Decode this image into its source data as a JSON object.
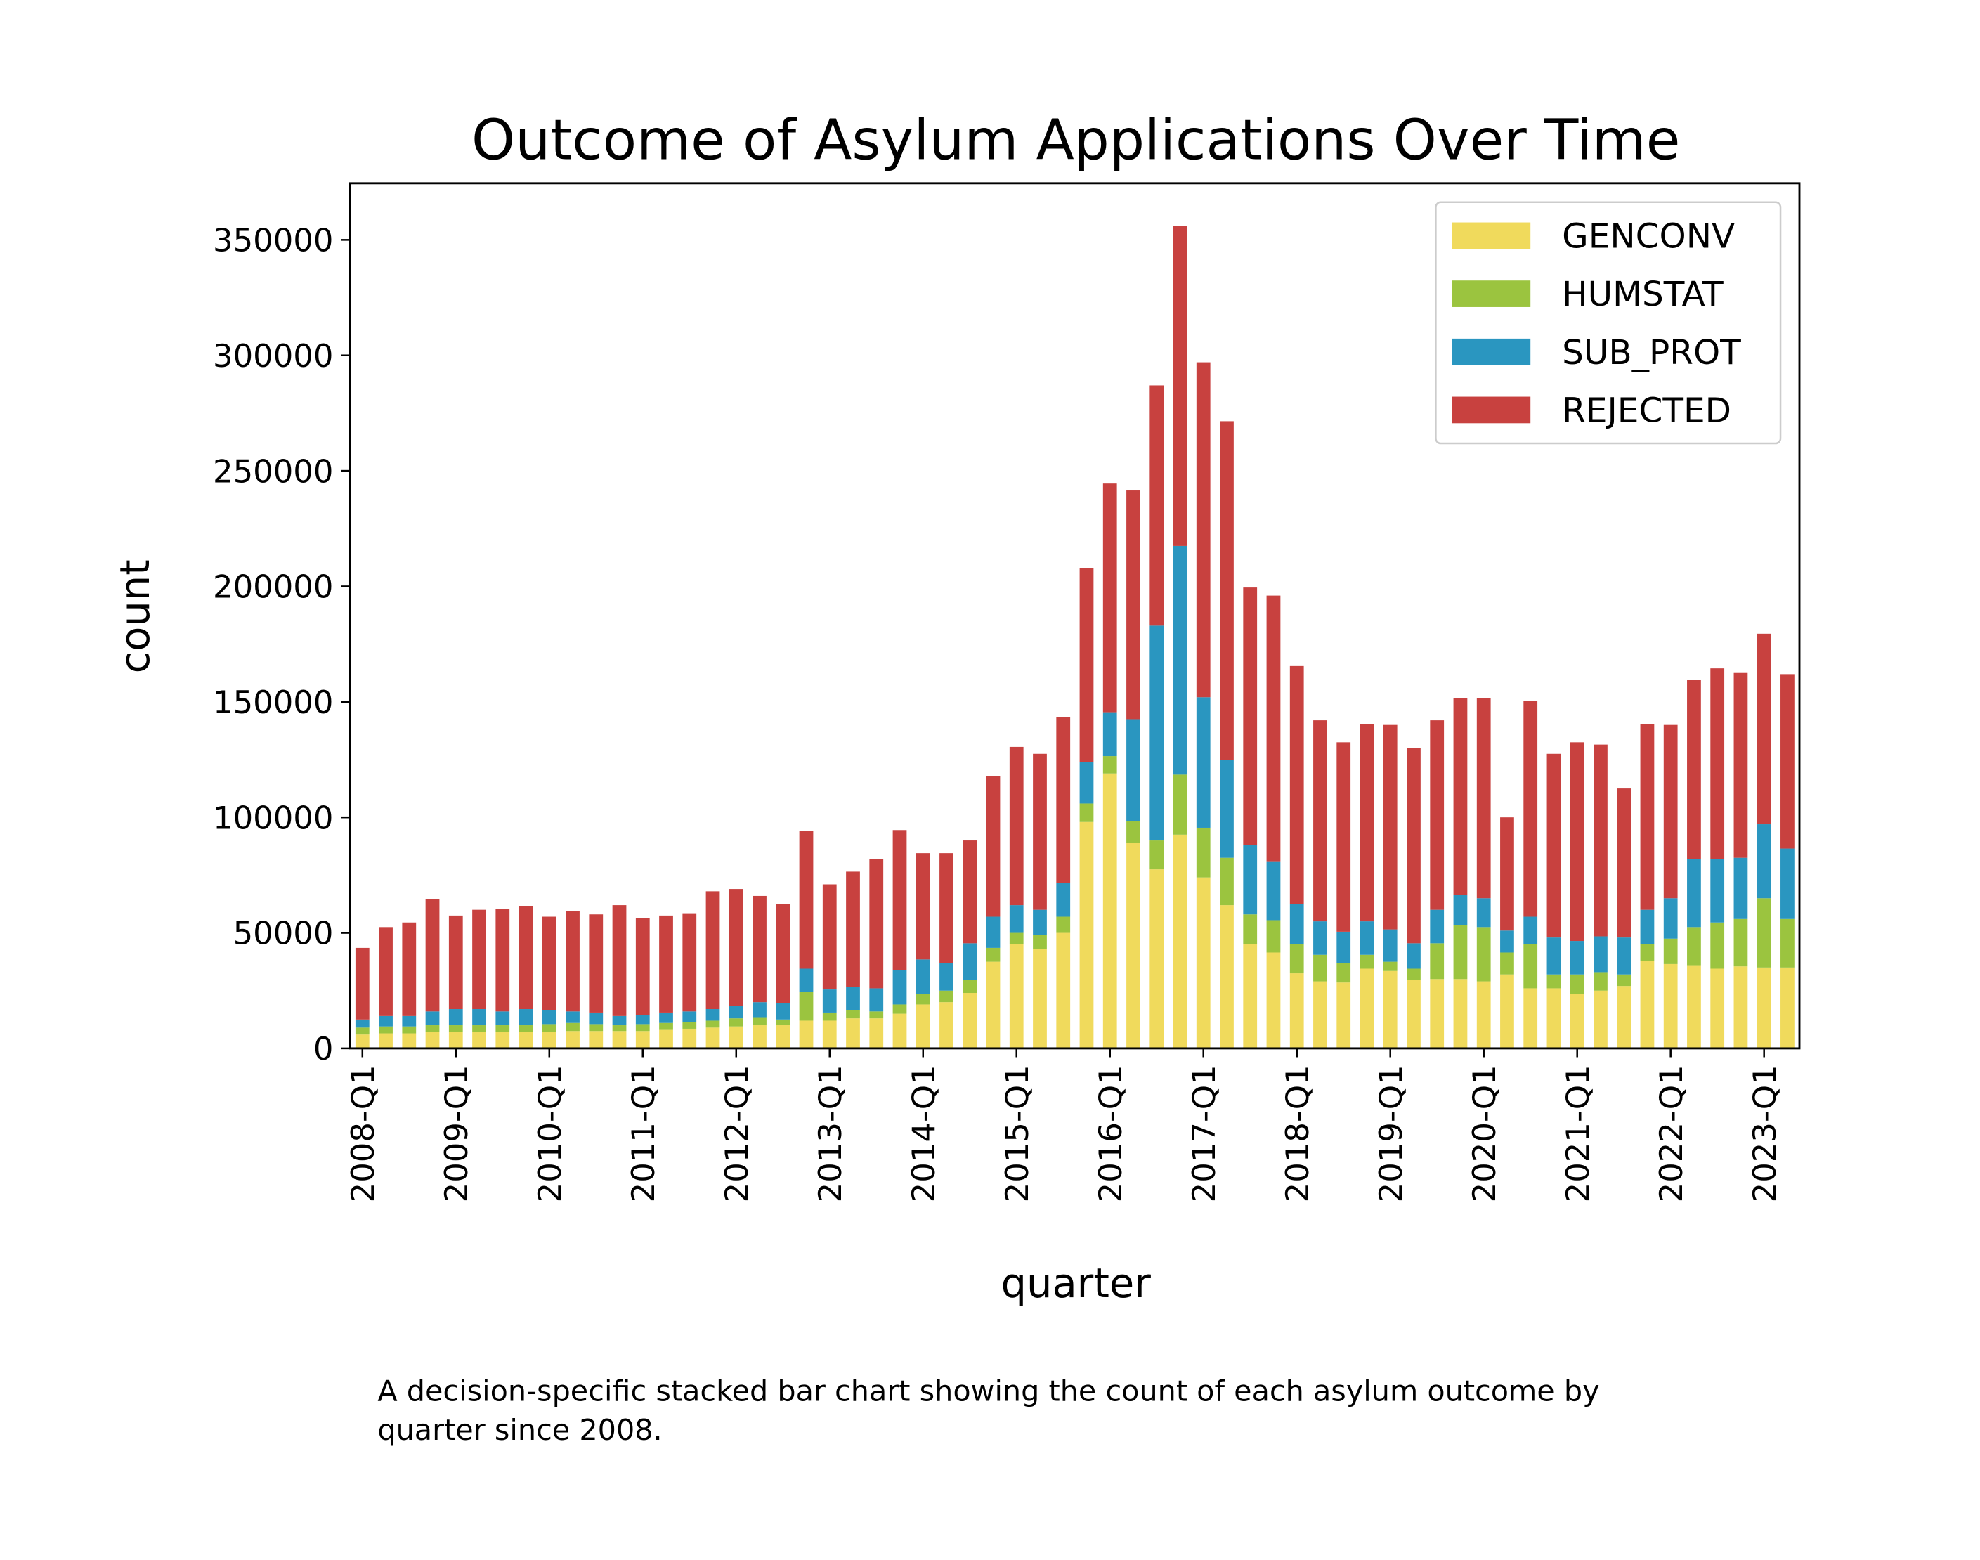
{
  "chart_data": {
    "type": "stacked_bar",
    "title": "Outcome of Asylum Applications Over Time",
    "xlabel": "quarter",
    "ylabel": "count",
    "caption": "A decision-specific stacked bar chart showing the count of each asylum outcome by quarter since 2008.",
    "categories": [
      "2008-Q1",
      null,
      null,
      null,
      "2009-Q1",
      null,
      null,
      null,
      "2010-Q1",
      null,
      null,
      null,
      "2011-Q1",
      null,
      null,
      null,
      "2012-Q1",
      null,
      null,
      null,
      "2013-Q1",
      null,
      null,
      null,
      "2014-Q1",
      null,
      null,
      null,
      "2015-Q1",
      null,
      null,
      null,
      "2016-Q1",
      null,
      null,
      null,
      "2017-Q1",
      null,
      null,
      null,
      "2018-Q1",
      null,
      null,
      null,
      "2019-Q1",
      null,
      null,
      null,
      "2020-Q1",
      null,
      null,
      null,
      "2021-Q1",
      null,
      null,
      null,
      "2022-Q1",
      null,
      null,
      null,
      "2023-Q1",
      null
    ],
    "series": [
      {
        "name": "GENCONV",
        "color": "#f0da5c",
        "values": [
          6000,
          6500,
          6500,
          7000,
          7000,
          7000,
          7000,
          7000,
          7000,
          7500,
          7500,
          7500,
          7500,
          8000,
          8500,
          9000,
          9500,
          10000,
          10000,
          12000,
          12000,
          13000,
          13000,
          15000,
          19000,
          20000,
          24000,
          37500,
          45000,
          43000,
          50000,
          98000,
          119000,
          89000,
          77500,
          92500,
          74000,
          62000,
          45000,
          41500,
          32500,
          29000,
          28500,
          34500,
          33500,
          29500,
          30000,
          30000,
          29000,
          32000,
          26000,
          26000,
          23500,
          25000,
          27000,
          38000,
          36500,
          36000,
          34500,
          35500,
          35000,
          35000
        ]
      },
      {
        "name": "HUMSTAT",
        "color": "#9bc43f",
        "values": [
          3000,
          3000,
          3000,
          3000,
          3000,
          3000,
          3000,
          3000,
          3500,
          3500,
          3000,
          2500,
          3000,
          3000,
          3000,
          3000,
          3500,
          3500,
          2500,
          12500,
          3500,
          3500,
          3000,
          4000,
          4500,
          5000,
          5500,
          6000,
          5000,
          6000,
          7000,
          8000,
          7500,
          9500,
          12500,
          26000,
          21500,
          20500,
          13000,
          14000,
          12500,
          11500,
          8500,
          6000,
          4000,
          5000,
          15500,
          23500,
          23500,
          9500,
          19000,
          6000,
          8500,
          8000,
          5000,
          7000,
          11000,
          16500,
          20000,
          20500,
          30000,
          21000
        ]
      },
      {
        "name": "SUB_PROT",
        "color": "#2a96c0",
        "values": [
          3500,
          4500,
          4500,
          6000,
          7000,
          7000,
          6000,
          7000,
          6000,
          5000,
          5000,
          4000,
          4000,
          4500,
          4500,
          5000,
          5500,
          6500,
          7000,
          10000,
          10000,
          10000,
          10000,
          15000,
          15000,
          12000,
          16000,
          13500,
          12000,
          11000,
          14500,
          18000,
          19000,
          44000,
          93000,
          99000,
          56500,
          42500,
          30000,
          25500,
          17500,
          14500,
          13500,
          14500,
          14000,
          11000,
          14500,
          13000,
          12500,
          9500,
          12000,
          16000,
          14500,
          15500,
          16000,
          15000,
          17500,
          29500,
          27500,
          26500,
          32000,
          30500
        ]
      },
      {
        "name": "REJECTED",
        "color": "#c8413f",
        "values": [
          31000,
          38500,
          40500,
          48500,
          40500,
          43000,
          44500,
          44500,
          40500,
          43500,
          42500,
          48000,
          42000,
          42000,
          42500,
          51000,
          50500,
          46000,
          43000,
          59500,
          45500,
          50000,
          56000,
          60500,
          46000,
          47500,
          44500,
          61000,
          68500,
          67500,
          72000,
          84000,
          99000,
          99000,
          104000,
          138500,
          145000,
          146500,
          111500,
          115000,
          103000,
          87000,
          82000,
          85500,
          88500,
          84500,
          82000,
          85000,
          86500,
          49000,
          93500,
          79500,
          86000,
          83000,
          64500,
          80500,
          75000,
          77500,
          82500,
          80000,
          82500,
          75500
        ]
      }
    ],
    "ylim": [
      0,
      374500
    ],
    "yticks": [
      0,
      50000,
      100000,
      150000,
      200000,
      250000,
      300000,
      350000
    ],
    "legend": "upper right"
  }
}
